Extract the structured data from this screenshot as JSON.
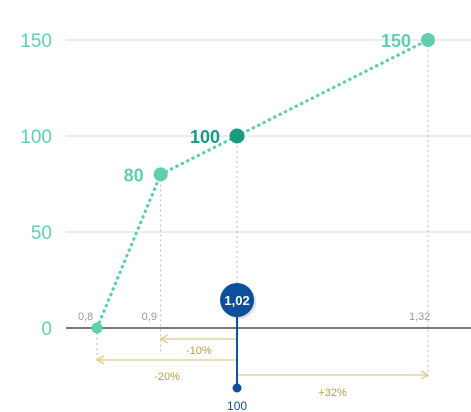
{
  "chart_data": {
    "type": "line",
    "ylim": [
      0,
      150
    ],
    "xlim": [
      0.8,
      1.32
    ],
    "grid": true,
    "y_ticks": [
      "0",
      "50",
      "100",
      "150"
    ],
    "x_ticks": [
      "0,8",
      "0,9",
      "1,32"
    ],
    "series": [
      {
        "x": [
          0.8,
          0.9,
          1.02,
          1.32
        ],
        "y": [
          0,
          80,
          100,
          150
        ]
      }
    ],
    "point_labels": [
      "80",
      "100",
      "150"
    ],
    "marker_value": "1,02",
    "marker_baseline_label": "100",
    "ranges": [
      {
        "from": 0.9,
        "to": 1.02,
        "label": "-10%"
      },
      {
        "from": 0.8,
        "to": 1.02,
        "label": "-20%"
      },
      {
        "from": 1.02,
        "to": 1.32,
        "label": "+32%"
      }
    ],
    "colors": {
      "series": "#5fcfaf",
      "highlight": "#1a9a82",
      "marker": "#0d4f9a",
      "range": "#dccd8a",
      "range_text": "#b8a04a",
      "axis_text": "#5fcfaf",
      "grid": "#d9d9d9",
      "tick_text": "#9a9a9a"
    }
  }
}
